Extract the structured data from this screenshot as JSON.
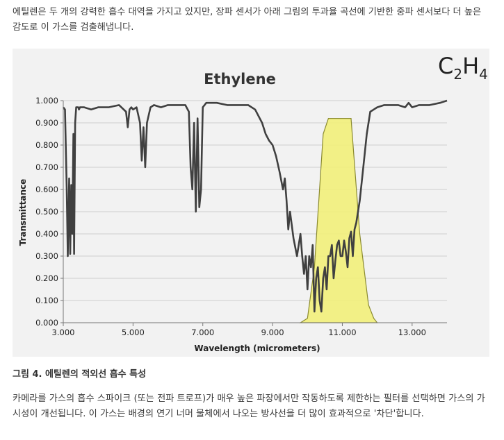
{
  "intro_text": "에틸렌은 두 개의 강력한 흡수 대역을 가지고 있지만, 장파 센서가 아래 그림의 투과율 곡선에 기반한 중파 센서보다 더 높은 감도로 이 가스를 검출해냅니다.",
  "figure": {
    "formula": {
      "main": "C",
      "sub1": "2",
      "mid": "H",
      "sub2": "4"
    },
    "caption": "그림 4. 에틸렌의 적외선 흡수 특성"
  },
  "body_text": "카메라를 가스의 흡수 스파이크 (또는 전파 트로프)가 매우 높은 파장에서만 작동하도록 제한하는 필터를 선택하면 가스의 가시성이 개선됩니다. 이 가스는 배경의 연기 너머 물체에서 나오는 방사선을 더 많이 효과적으로 '차단'합니다.",
  "colors": {
    "curve": "#404040",
    "filter_fill": "#f2ef7a",
    "filter_stroke": "#8a8a30",
    "background": "#f2f2f2"
  },
  "chart_data": {
    "type": "line",
    "title": "Ethylene",
    "xlabel": "Wavelength (micrometers)",
    "ylabel": "Transmittance",
    "xlim": [
      3.0,
      14.0
    ],
    "ylim": [
      0.0,
      1.0
    ],
    "x_ticks": [
      "3.000",
      "5.000",
      "7.000",
      "9.000",
      "11.000",
      "13.000"
    ],
    "x_tick_values": [
      3,
      5,
      7,
      9,
      11,
      13
    ],
    "y_ticks": [
      "0.000",
      "0.100",
      "0.200",
      "0.300",
      "0.400",
      "0.500",
      "0.600",
      "0.700",
      "0.800",
      "0.900",
      "1.000"
    ],
    "y_tick_values": [
      0,
      0.1,
      0.2,
      0.3,
      0.4,
      0.5,
      0.6,
      0.7,
      0.8,
      0.9,
      1.0
    ],
    "grid": true,
    "series": [
      {
        "x": [
          3.0,
          3.05,
          3.1,
          3.13,
          3.17,
          3.2,
          3.23,
          3.26,
          3.29,
          3.31,
          3.34,
          3.37,
          3.4,
          3.43,
          3.45,
          3.48,
          3.52,
          3.6,
          3.8,
          4.0,
          4.3,
          4.6,
          4.8,
          4.85,
          4.9,
          4.95,
          5.0,
          5.1,
          5.2,
          5.25,
          5.3,
          5.35,
          5.4,
          5.5,
          5.6,
          5.8,
          6.0,
          6.2,
          6.5,
          6.6,
          6.65,
          6.7,
          6.75,
          6.8,
          6.85,
          6.9,
          6.95,
          7.0,
          7.05,
          7.1,
          7.2,
          7.4,
          7.7,
          8.0,
          8.3,
          8.5,
          8.7,
          8.8,
          8.9,
          9.0,
          9.1,
          9.2,
          9.3,
          9.35,
          9.4,
          9.45,
          9.5,
          9.6,
          9.7,
          9.8,
          9.85,
          9.9,
          9.95,
          10.0,
          10.05,
          10.1,
          10.15,
          10.2,
          10.25,
          10.3,
          10.35,
          10.4,
          10.45,
          10.5,
          10.55,
          10.6,
          10.65,
          10.7,
          10.75,
          10.8,
          10.85,
          10.9,
          10.95,
          11.0,
          11.05,
          11.1,
          11.15,
          11.2,
          11.25,
          11.3,
          11.35,
          11.4,
          11.5,
          11.6,
          11.7,
          11.8,
          11.9,
          12.0,
          12.2,
          12.4,
          12.6,
          12.8,
          12.9,
          13.0,
          13.2,
          13.5,
          13.8,
          14.0
        ],
        "y": [
          0.97,
          0.96,
          0.6,
          0.3,
          0.65,
          0.31,
          0.62,
          0.4,
          0.85,
          0.31,
          0.9,
          0.97,
          0.97,
          0.97,
          0.96,
          0.97,
          0.97,
          0.97,
          0.96,
          0.97,
          0.97,
          0.98,
          0.95,
          0.88,
          0.96,
          0.97,
          0.96,
          0.97,
          0.9,
          0.73,
          0.88,
          0.7,
          0.9,
          0.97,
          0.98,
          0.97,
          0.98,
          0.98,
          0.98,
          0.95,
          0.7,
          0.6,
          0.9,
          0.5,
          0.92,
          0.52,
          0.6,
          0.97,
          0.98,
          0.99,
          0.99,
          0.99,
          0.98,
          0.98,
          0.98,
          0.96,
          0.9,
          0.85,
          0.82,
          0.8,
          0.75,
          0.68,
          0.6,
          0.65,
          0.55,
          0.42,
          0.5,
          0.38,
          0.3,
          0.4,
          0.3,
          0.22,
          0.3,
          0.15,
          0.3,
          0.25,
          0.35,
          0.05,
          0.2,
          0.25,
          0.1,
          0.05,
          0.2,
          0.25,
          0.15,
          0.3,
          0.3,
          0.35,
          0.2,
          0.28,
          0.35,
          0.37,
          0.3,
          0.3,
          0.37,
          0.32,
          0.25,
          0.38,
          0.41,
          0.3,
          0.42,
          0.45,
          0.55,
          0.7,
          0.85,
          0.95,
          0.96,
          0.97,
          0.98,
          0.98,
          0.98,
          0.97,
          0.99,
          0.97,
          0.98,
          0.98,
          0.99,
          1.0
        ]
      }
    ],
    "filter_band": {
      "x": [
        9.8,
        10.0,
        10.2,
        10.45,
        10.6,
        11.25,
        11.5,
        11.75,
        11.9,
        12.0
      ],
      "y": [
        0.0,
        0.02,
        0.25,
        0.85,
        0.92,
        0.92,
        0.4,
        0.08,
        0.02,
        0.0
      ]
    }
  }
}
